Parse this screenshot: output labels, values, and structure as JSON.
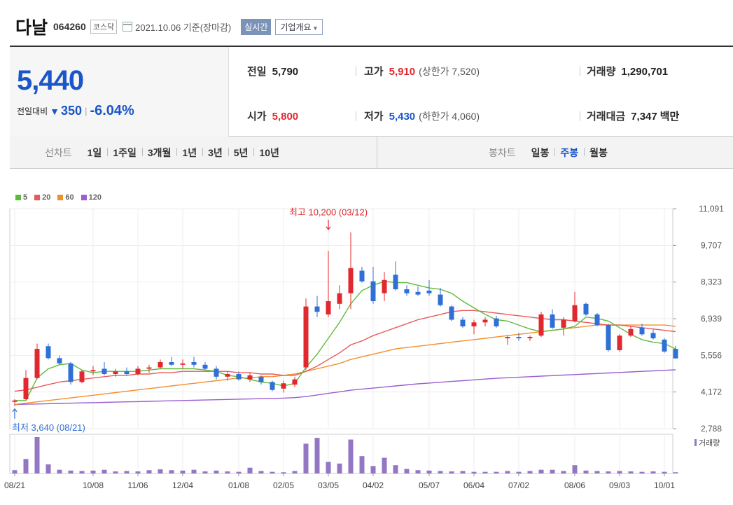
{
  "header": {
    "name": "다날",
    "code": "064260",
    "market": "코스닥",
    "date": "2021.10.06 기준(장마감)",
    "realtime_label": "실시간",
    "overview_label": "기업개요"
  },
  "price": {
    "current": "5,440",
    "change_label": "전일대비",
    "change": "350",
    "change_pct": "-6.04%"
  },
  "stats": {
    "prev_close_label": "전일",
    "prev_close": "5,790",
    "high_label": "고가",
    "high": "5,910",
    "upper_limit": "(상한가 7,520)",
    "volume_label": "거래량",
    "volume": "1,290,701",
    "open_label": "시가",
    "open": "5,800",
    "low_label": "저가",
    "low": "5,430",
    "lower_limit": "(하한가 4,060)",
    "amount_label": "거래대금",
    "amount": "7,347",
    "amount_unit": "백만"
  },
  "tabs": {
    "line_label": "선차트",
    "line_items": [
      "1일",
      "1주일",
      "3개월",
      "1년",
      "3년",
      "5년",
      "10년"
    ],
    "candle_label": "봉차트",
    "candle_items": [
      "일봉",
      "주봉",
      "월봉"
    ],
    "candle_active": 1
  },
  "colors": {
    "up": "#e0282e",
    "down": "#2f6fd6",
    "ma5": "#5dbb3b",
    "ma20": "#e85a5a",
    "ma60": "#f0902c",
    "ma120": "#9a5fcf",
    "volume": "#9377c5"
  },
  "chart_data": {
    "type": "candlestick",
    "legend": [
      {
        "name": "5",
        "color": "#5dbb3b"
      },
      {
        "name": "20",
        "color": "#e85a5a"
      },
      {
        "name": "60",
        "color": "#f0902c"
      },
      {
        "name": "120",
        "color": "#9a5fcf"
      }
    ],
    "volume_label": "거래량",
    "y_ticks": [
      "11,091",
      "9,707",
      "8,323",
      "6,939",
      "5,556",
      "4,172",
      "2,788"
    ],
    "ylim": [
      2788,
      11091
    ],
    "x_ticks": [
      {
        "label": "08/21",
        "week": 0
      },
      {
        "label": "10/08",
        "week": 7
      },
      {
        "label": "11/06",
        "week": 11
      },
      {
        "label": "12/04",
        "week": 15
      },
      {
        "label": "01/08",
        "week": 20
      },
      {
        "label": "02/05",
        "week": 24
      },
      {
        "label": "03/05",
        "week": 28
      },
      {
        "label": "04/02",
        "week": 32
      },
      {
        "label": "05/07",
        "week": 37
      },
      {
        "label": "06/04",
        "week": 41
      },
      {
        "label": "07/02",
        "week": 45
      },
      {
        "label": "08/06",
        "week": 50
      },
      {
        "label": "09/03",
        "week": 54
      },
      {
        "label": "10/01",
        "week": 58
      }
    ],
    "annotations": {
      "high": {
        "text": "최고 10,200 (03/12)",
        "week": 28,
        "value": 10200
      },
      "low": {
        "text": "최저 3,640 (08/21)",
        "week": 0,
        "value": 3640
      }
    },
    "candles": [
      {
        "o": 3800,
        "h": 3900,
        "l": 3640,
        "c": 3850,
        "v": 8
      },
      {
        "o": 3900,
        "h": 5000,
        "l": 3850,
        "c": 4700,
        "v": 35
      },
      {
        "o": 4700,
        "h": 6000,
        "l": 4650,
        "c": 5800,
        "v": 88
      },
      {
        "o": 5900,
        "h": 6000,
        "l": 5400,
        "c": 5450,
        "v": 22
      },
      {
        "o": 5450,
        "h": 5550,
        "l": 5200,
        "c": 5250,
        "v": 9
      },
      {
        "o": 5250,
        "h": 5300,
        "l": 4450,
        "c": 4550,
        "v": 7
      },
      {
        "o": 4550,
        "h": 5000,
        "l": 4500,
        "c": 4950,
        "v": 6
      },
      {
        "o": 4950,
        "h": 5150,
        "l": 4800,
        "c": 5000,
        "v": 7
      },
      {
        "o": 5050,
        "h": 5300,
        "l": 4800,
        "c": 4850,
        "v": 9
      },
      {
        "o": 4850,
        "h": 5050,
        "l": 4750,
        "c": 4950,
        "v": 5
      },
      {
        "o": 4950,
        "h": 5100,
        "l": 4800,
        "c": 4850,
        "v": 6
      },
      {
        "o": 4850,
        "h": 5150,
        "l": 4800,
        "c": 5050,
        "v": 5
      },
      {
        "o": 5050,
        "h": 5200,
        "l": 4900,
        "c": 5100,
        "v": 8
      },
      {
        "o": 5100,
        "h": 5400,
        "l": 5050,
        "c": 5300,
        "v": 10
      },
      {
        "o": 5300,
        "h": 5500,
        "l": 5150,
        "c": 5200,
        "v": 8
      },
      {
        "o": 5200,
        "h": 5400,
        "l": 5050,
        "c": 5250,
        "v": 7
      },
      {
        "o": 5300,
        "h": 5500,
        "l": 5100,
        "c": 5200,
        "v": 9
      },
      {
        "o": 5200,
        "h": 5300,
        "l": 5000,
        "c": 5050,
        "v": 5
      },
      {
        "o": 5050,
        "h": 5150,
        "l": 4650,
        "c": 4750,
        "v": 7
      },
      {
        "o": 4750,
        "h": 4950,
        "l": 4600,
        "c": 4850,
        "v": 5
      },
      {
        "o": 4850,
        "h": 4950,
        "l": 4600,
        "c": 4650,
        "v": 4
      },
      {
        "o": 4650,
        "h": 4900,
        "l": 4550,
        "c": 4800,
        "v": 14
      },
      {
        "o": 4750,
        "h": 4800,
        "l": 4450,
        "c": 4550,
        "v": 6
      },
      {
        "o": 4550,
        "h": 4600,
        "l": 4200,
        "c": 4250,
        "v": 4
      },
      {
        "o": 4300,
        "h": 4600,
        "l": 4150,
        "c": 4500,
        "v": 3
      },
      {
        "o": 4450,
        "h": 4750,
        "l": 4350,
        "c": 4650,
        "v": 6
      },
      {
        "o": 5100,
        "h": 7700,
        "l": 5000,
        "c": 7400,
        "v": 72
      },
      {
        "o": 7400,
        "h": 7800,
        "l": 7000,
        "c": 7200,
        "v": 86
      },
      {
        "o": 7100,
        "h": 9500,
        "l": 7000,
        "c": 7600,
        "v": 28
      },
      {
        "o": 7500,
        "h": 8200,
        "l": 7300,
        "c": 7900,
        "v": 24
      },
      {
        "o": 7900,
        "h": 10200,
        "l": 7300,
        "c": 8850,
        "v": 82
      },
      {
        "o": 8750,
        "h": 8900,
        "l": 8300,
        "c": 8350,
        "v": 42
      },
      {
        "o": 8350,
        "h": 8900,
        "l": 7500,
        "c": 7600,
        "v": 18
      },
      {
        "o": 7900,
        "h": 8700,
        "l": 7600,
        "c": 8400,
        "v": 38
      },
      {
        "o": 8600,
        "h": 9100,
        "l": 8000,
        "c": 8050,
        "v": 20
      },
      {
        "o": 8050,
        "h": 8200,
        "l": 7800,
        "c": 7900,
        "v": 11
      },
      {
        "o": 7950,
        "h": 8150,
        "l": 7800,
        "c": 7850,
        "v": 8
      },
      {
        "o": 8000,
        "h": 8400,
        "l": 7800,
        "c": 7900,
        "v": 7
      },
      {
        "o": 7850,
        "h": 8100,
        "l": 7400,
        "c": 7450,
        "v": 6
      },
      {
        "o": 7400,
        "h": 7450,
        "l": 6850,
        "c": 6900,
        "v": 5
      },
      {
        "o": 6900,
        "h": 7000,
        "l": 6600,
        "c": 6650,
        "v": 6
      },
      {
        "o": 6650,
        "h": 6900,
        "l": 6350,
        "c": 6800,
        "v": 4
      },
      {
        "o": 6800,
        "h": 7000,
        "l": 6650,
        "c": 6900,
        "v": 4
      },
      {
        "o": 6950,
        "h": 7050,
        "l": 6600,
        "c": 6650,
        "v": 4
      },
      {
        "o": 6200,
        "h": 6300,
        "l": 5950,
        "c": 6250,
        "v": 6
      },
      {
        "o": 6250,
        "h": 6400,
        "l": 6100,
        "c": 6200,
        "v": 4
      },
      {
        "o": 6200,
        "h": 6300,
        "l": 6100,
        "c": 6250,
        "v": 6
      },
      {
        "o": 6300,
        "h": 7200,
        "l": 6250,
        "c": 7100,
        "v": 9
      },
      {
        "o": 7100,
        "h": 7300,
        "l": 6550,
        "c": 6600,
        "v": 9
      },
      {
        "o": 6600,
        "h": 7000,
        "l": 6300,
        "c": 6900,
        "v": 6
      },
      {
        "o": 6850,
        "h": 7950,
        "l": 6800,
        "c": 7450,
        "v": 20
      },
      {
        "o": 7500,
        "h": 7550,
        "l": 7050,
        "c": 7100,
        "v": 7
      },
      {
        "o": 7100,
        "h": 7150,
        "l": 6650,
        "c": 6700,
        "v": 6
      },
      {
        "o": 6700,
        "h": 6750,
        "l": 5700,
        "c": 5750,
        "v": 5
      },
      {
        "o": 5750,
        "h": 6350,
        "l": 5700,
        "c": 6300,
        "v": 6
      },
      {
        "o": 6300,
        "h": 6650,
        "l": 6250,
        "c": 6550,
        "v": 5
      },
      {
        "o": 6600,
        "h": 6750,
        "l": 6300,
        "c": 6350,
        "v": 4
      },
      {
        "o": 6400,
        "h": 6550,
        "l": 6150,
        "c": 6200,
        "v": 5
      },
      {
        "o": 6150,
        "h": 6200,
        "l": 5650,
        "c": 5700,
        "v": 4
      },
      {
        "o": 5800,
        "h": 5910,
        "l": 5430,
        "c": 5440,
        "v": 3
      }
    ],
    "ma5": [
      3850,
      3850,
      4700,
      5050,
      5200,
      5250,
      5000,
      4900,
      4950,
      4950,
      4950,
      4950,
      5000,
      5050,
      5050,
      5050,
      5050,
      5000,
      4950,
      4800,
      4750,
      4650,
      4550,
      4500,
      4400,
      4500,
      5100,
      5600,
      6200,
      6800,
      7500,
      8000,
      8200,
      8350,
      8300,
      8300,
      8200,
      8100,
      8050,
      7900,
      7600,
      7350,
      7100,
      6900,
      6850,
      6700,
      6550,
      6450,
      6500,
      6550,
      6650,
      7000,
      6950,
      6850,
      6600,
      6350,
      6150,
      6050,
      6000,
      5800
    ],
    "ma20": [
      4200,
      4250,
      4350,
      4450,
      4550,
      4600,
      4650,
      4700,
      4750,
      4800,
      4800,
      4850,
      4850,
      4900,
      4900,
      4950,
      4950,
      4950,
      4950,
      4950,
      4900,
      4900,
      4850,
      4850,
      4800,
      4800,
      4950,
      5150,
      5400,
      5650,
      5950,
      6100,
      6300,
      6450,
      6600,
      6750,
      6900,
      7000,
      7100,
      7200,
      7250,
      7250,
      7200,
      7150,
      7100,
      7050,
      7000,
      6950,
      6900,
      6900,
      6850,
      6800,
      6750,
      6700,
      6700,
      6650,
      6600,
      6550,
      6500,
      6450
    ],
    "ma60": [
      3700,
      3750,
      3800,
      3850,
      3900,
      3950,
      4000,
      4050,
      4100,
      4150,
      4200,
      4250,
      4300,
      4350,
      4400,
      4450,
      4500,
      4550,
      4600,
      4650,
      4700,
      4700,
      4750,
      4750,
      4800,
      4850,
      4950,
      5050,
      5150,
      5250,
      5400,
      5500,
      5600,
      5700,
      5800,
      5850,
      5900,
      5950,
      6000,
      6050,
      6100,
      6150,
      6200,
      6250,
      6300,
      6350,
      6400,
      6450,
      6500,
      6550,
      6600,
      6650,
      6700,
      6700,
      6700,
      6700,
      6700,
      6700,
      6700,
      6650
    ],
    "ma120": [
      3700,
      3710,
      3720,
      3730,
      3740,
      3750,
      3760,
      3770,
      3780,
      3790,
      3800,
      3810,
      3820,
      3830,
      3840,
      3850,
      3860,
      3870,
      3880,
      3890,
      3900,
      3910,
      3920,
      3930,
      3940,
      3960,
      4000,
      4060,
      4120,
      4180,
      4240,
      4280,
      4320,
      4360,
      4400,
      4440,
      4480,
      4510,
      4540,
      4570,
      4600,
      4630,
      4660,
      4690,
      4710,
      4730,
      4750,
      4770,
      4790,
      4810,
      4830,
      4850,
      4870,
      4890,
      4910,
      4930,
      4950,
      4970,
      4990,
      5010
    ]
  }
}
